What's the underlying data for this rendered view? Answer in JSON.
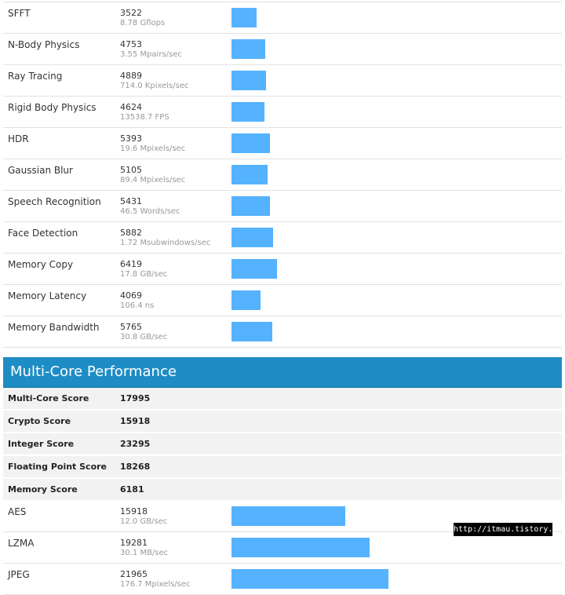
{
  "single_core_rows": [
    {
      "name": "SFFT",
      "score": "3522",
      "unit": "8.78 Gflops"
    },
    {
      "name": "N-Body Physics",
      "score": "4753",
      "unit": "3.55 Mpairs/sec"
    },
    {
      "name": "Ray Tracing",
      "score": "4889",
      "unit": "714.0 Kpixels/sec"
    },
    {
      "name": "Rigid Body Physics",
      "score": "4624",
      "unit": "13538.7 FPS"
    },
    {
      "name": "HDR",
      "score": "5393",
      "unit": "19.6 Mpixels/sec"
    },
    {
      "name": "Gaussian Blur",
      "score": "5105",
      "unit": "89.4 Mpixels/sec"
    },
    {
      "name": "Speech Recognition",
      "score": "5431",
      "unit": "46.5 Words/sec"
    },
    {
      "name": "Face Detection",
      "score": "5882",
      "unit": "1.72 Msubwindows/sec"
    },
    {
      "name": "Memory Copy",
      "score": "6419",
      "unit": "17.8 GB/sec"
    },
    {
      "name": "Memory Latency",
      "score": "4069",
      "unit": "106.4 ns"
    },
    {
      "name": "Memory Bandwidth",
      "score": "5765",
      "unit": "30.8 GB/sec"
    }
  ],
  "multi_core": {
    "title": "Multi-Core Performance",
    "summary": [
      {
        "label": "Multi-Core Score",
        "value": "17995"
      },
      {
        "label": "Crypto Score",
        "value": "15918"
      },
      {
        "label": "Integer Score",
        "value": "23295"
      },
      {
        "label": "Floating Point Score",
        "value": "18268"
      },
      {
        "label": "Memory Score",
        "value": "6181"
      }
    ],
    "rows": [
      {
        "name": "AES",
        "score": "15918",
        "unit": "12.0 GB/sec"
      },
      {
        "name": "LZMA",
        "score": "19281",
        "unit": "30.1 MB/sec"
      },
      {
        "name": "JPEG",
        "score": "21965",
        "unit": "176.7 Mpixels/sec"
      }
    ]
  },
  "watermark": "http://itmau.tistory.com",
  "colors": {
    "bar": "#55b2ff",
    "header": "#1e8dc5"
  }
}
